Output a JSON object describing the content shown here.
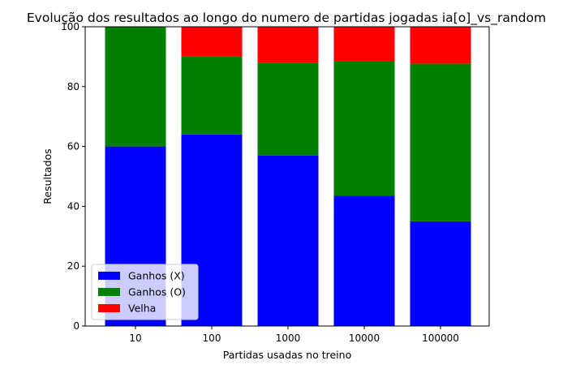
{
  "chart_data": {
    "type": "bar",
    "stacked": true,
    "title": "Evolução dos resultados ao longo do numero de partidas jogadas ia[o]_vs_random",
    "xlabel": "Partidas usadas no treino",
    "ylabel": "Resultados",
    "categories": [
      "10",
      "100",
      "1000",
      "10000",
      "100000"
    ],
    "series": [
      {
        "name": "Ganhos (X)",
        "color": "#0000ff",
        "values": [
          60,
          64,
          57,
          43.5,
          35
        ]
      },
      {
        "name": "Ganhos (O)",
        "color": "#008000",
        "values": [
          40,
          26,
          31,
          45,
          52.7
        ]
      },
      {
        "name": "Velha",
        "color": "#ff0000",
        "values": [
          0,
          10,
          12,
          11.5,
          12.3
        ]
      }
    ],
    "ylim": [
      0,
      100
    ],
    "yticks": [
      0,
      20,
      40,
      60,
      80,
      100
    ],
    "grid": false,
    "legend_position": "lower-left"
  }
}
